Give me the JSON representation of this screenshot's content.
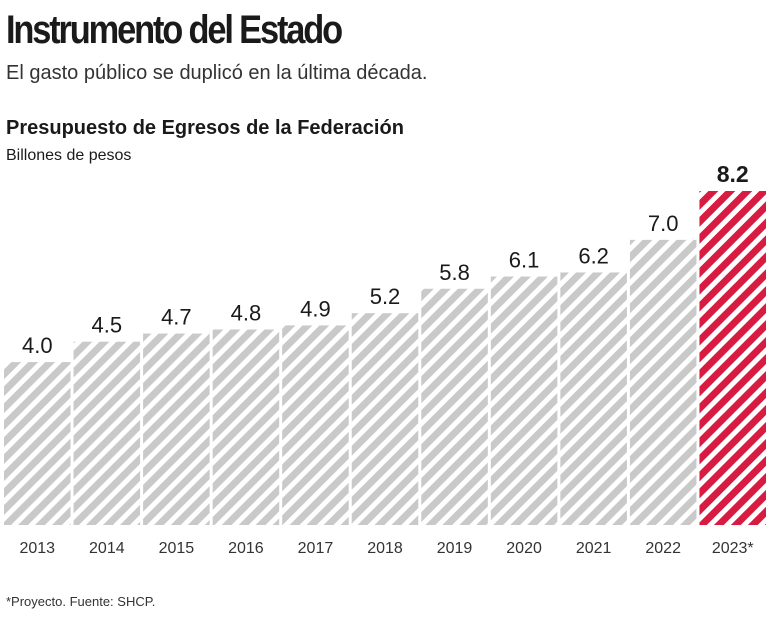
{
  "header": {
    "title": "Instrumento del Estado",
    "subtitle": "El gasto público se duplicó en la última década."
  },
  "chart_data": {
    "type": "bar",
    "title": "Presupuesto de Egresos de la Federación",
    "ylabel": "Billones de pesos",
    "categories": [
      "2013",
      "2014",
      "2015",
      "2016",
      "2017",
      "2018",
      "2019",
      "2020",
      "2021",
      "2022",
      "2023*"
    ],
    "values": [
      4.0,
      4.5,
      4.7,
      4.8,
      4.9,
      5.2,
      5.8,
      6.1,
      6.2,
      7.0,
      8.2
    ],
    "value_labels": [
      "4.0",
      "4.5",
      "4.7",
      "4.8",
      "4.9",
      "5.2",
      "5.8",
      "6.1",
      "6.2",
      "7.0",
      "8.2"
    ],
    "ylim": [
      0,
      8.2
    ],
    "grid": false,
    "colors": {
      "default": "#c9c9c9",
      "highlight": "#d81b40"
    },
    "highlight_index": 10
  },
  "footnote": "*Proyecto. Fuente: SHCP."
}
